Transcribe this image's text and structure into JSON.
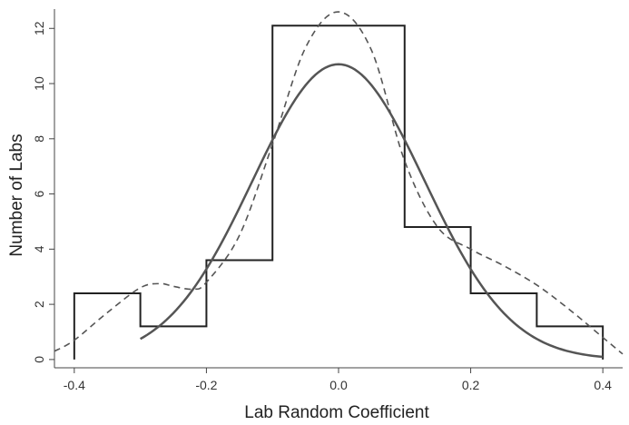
{
  "chart_data": {
    "type": "histogram",
    "xlabel": "Lab Random Coefficient",
    "ylabel": "Number of Labs",
    "xlim": [
      -0.43,
      0.43
    ],
    "ylim": [
      -0.3,
      12.7
    ],
    "xticks": [
      -0.4,
      -0.2,
      0.0,
      0.2,
      0.4
    ],
    "xtick_labels": [
      "-0.4",
      "-0.2",
      "0.0",
      "0.2",
      "0.4"
    ],
    "yticks": [
      0,
      2,
      4,
      6,
      8,
      10,
      12
    ],
    "ytick_labels": [
      "0",
      "2",
      "4",
      "6",
      "8",
      "10",
      "12"
    ],
    "grid": false,
    "legend": "none",
    "histogram": {
      "bin_edges": [
        -0.4,
        -0.3,
        -0.2,
        -0.1,
        0.1,
        0.2,
        0.3,
        0.4
      ],
      "counts": [
        2.4,
        1.2,
        3.6,
        12.1,
        4.8,
        2.4,
        1.2
      ]
    },
    "normal_curve": {
      "style": "solid",
      "mean": 0.0,
      "peak": 10.7,
      "sd": 0.13,
      "x_range": [
        -0.3,
        0.4
      ]
    },
    "density_curve": {
      "style": "dashed",
      "x": [
        -0.43,
        -0.4,
        -0.35,
        -0.3,
        -0.27,
        -0.25,
        -0.22,
        -0.2,
        -0.15,
        -0.1,
        -0.05,
        0.0,
        0.05,
        0.1,
        0.15,
        0.2,
        0.25,
        0.3,
        0.35,
        0.4,
        0.43
      ],
      "y": [
        0.3,
        0.7,
        1.7,
        2.6,
        2.75,
        2.65,
        2.55,
        2.8,
        4.5,
        7.8,
        11.3,
        12.6,
        11.2,
        7.2,
        4.8,
        4.0,
        3.4,
        2.7,
        1.8,
        0.8,
        0.2
      ]
    }
  }
}
